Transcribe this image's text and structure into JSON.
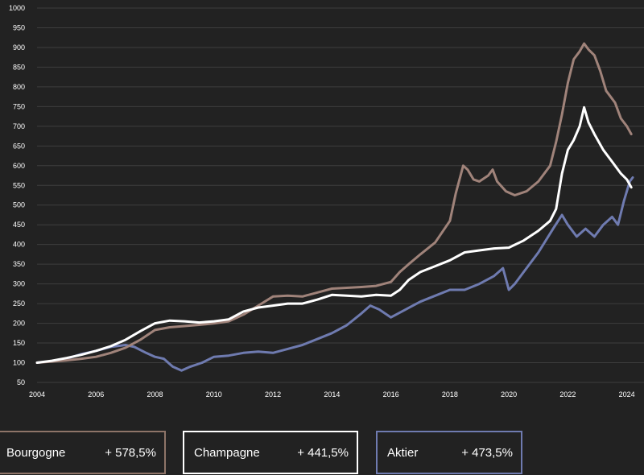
{
  "chart_data": {
    "type": "line",
    "title": "",
    "xlabel": "",
    "ylabel": "",
    "xlim": [
      2004,
      2024.2
    ],
    "ylim": [
      50,
      1000
    ],
    "xticks": [
      2004,
      2006,
      2008,
      2010,
      2012,
      2014,
      2016,
      2018,
      2020,
      2022,
      2024
    ],
    "yticks": [
      50,
      100,
      150,
      200,
      250,
      300,
      350,
      400,
      450,
      500,
      550,
      600,
      650,
      700,
      750,
      800,
      850,
      900,
      950,
      1000
    ],
    "grid": "horizontal",
    "legend_position": "bottom",
    "series": [
      {
        "name": "Bourgogne",
        "change": "+ 578,5%",
        "color": "#a0837a",
        "points": [
          [
            2004.0,
            100
          ],
          [
            2004.5,
            103
          ],
          [
            2005.0,
            106
          ],
          [
            2005.5,
            110
          ],
          [
            2006.0,
            115
          ],
          [
            2006.5,
            125
          ],
          [
            2007.0,
            138
          ],
          [
            2007.5,
            158
          ],
          [
            2008.0,
            183
          ],
          [
            2008.5,
            190
          ],
          [
            2009.0,
            193
          ],
          [
            2009.5,
            196
          ],
          [
            2010.0,
            200
          ],
          [
            2010.5,
            205
          ],
          [
            2011.0,
            222
          ],
          [
            2011.5,
            245
          ],
          [
            2012.0,
            268
          ],
          [
            2012.5,
            270
          ],
          [
            2013.0,
            268
          ],
          [
            2013.5,
            278
          ],
          [
            2014.0,
            288
          ],
          [
            2014.5,
            290
          ],
          [
            2015.0,
            292
          ],
          [
            2015.5,
            295
          ],
          [
            2016.0,
            305
          ],
          [
            2016.3,
            330
          ],
          [
            2016.6,
            350
          ],
          [
            2017.0,
            375
          ],
          [
            2017.5,
            405
          ],
          [
            2018.0,
            460
          ],
          [
            2018.2,
            530
          ],
          [
            2018.45,
            600
          ],
          [
            2018.6,
            590
          ],
          [
            2018.8,
            565
          ],
          [
            2019.0,
            560
          ],
          [
            2019.3,
            575
          ],
          [
            2019.45,
            590
          ],
          [
            2019.6,
            560
          ],
          [
            2019.9,
            535
          ],
          [
            2020.2,
            525
          ],
          [
            2020.6,
            535
          ],
          [
            2021.0,
            560
          ],
          [
            2021.4,
            600
          ],
          [
            2021.6,
            660
          ],
          [
            2021.8,
            730
          ],
          [
            2022.0,
            810
          ],
          [
            2022.2,
            870
          ],
          [
            2022.4,
            890
          ],
          [
            2022.55,
            910
          ],
          [
            2022.7,
            895
          ],
          [
            2022.9,
            880
          ],
          [
            2023.1,
            840
          ],
          [
            2023.3,
            790
          ],
          [
            2023.6,
            760
          ],
          [
            2023.8,
            720
          ],
          [
            2024.0,
            700
          ],
          [
            2024.15,
            680
          ]
        ]
      },
      {
        "name": "Champagne",
        "change": "+ 441,5%",
        "color": "#ffffff",
        "points": [
          [
            2004.0,
            100
          ],
          [
            2004.5,
            105
          ],
          [
            2005.0,
            112
          ],
          [
            2005.5,
            120
          ],
          [
            2006.0,
            130
          ],
          [
            2006.5,
            142
          ],
          [
            2007.0,
            158
          ],
          [
            2007.5,
            180
          ],
          [
            2008.0,
            200
          ],
          [
            2008.5,
            207
          ],
          [
            2009.0,
            205
          ],
          [
            2009.5,
            202
          ],
          [
            2010.0,
            205
          ],
          [
            2010.5,
            210
          ],
          [
            2011.0,
            230
          ],
          [
            2011.5,
            240
          ],
          [
            2012.0,
            245
          ],
          [
            2012.5,
            250
          ],
          [
            2013.0,
            250
          ],
          [
            2013.5,
            260
          ],
          [
            2014.0,
            272
          ],
          [
            2014.5,
            270
          ],
          [
            2015.0,
            268
          ],
          [
            2015.5,
            272
          ],
          [
            2016.0,
            270
          ],
          [
            2016.3,
            285
          ],
          [
            2016.6,
            310
          ],
          [
            2017.0,
            330
          ],
          [
            2017.5,
            345
          ],
          [
            2018.0,
            360
          ],
          [
            2018.5,
            380
          ],
          [
            2019.0,
            385
          ],
          [
            2019.5,
            390
          ],
          [
            2020.0,
            392
          ],
          [
            2020.5,
            410
          ],
          [
            2021.0,
            435
          ],
          [
            2021.4,
            460
          ],
          [
            2021.6,
            490
          ],
          [
            2021.8,
            580
          ],
          [
            2022.0,
            640
          ],
          [
            2022.2,
            665
          ],
          [
            2022.4,
            700
          ],
          [
            2022.55,
            748
          ],
          [
            2022.7,
            710
          ],
          [
            2022.9,
            680
          ],
          [
            2023.2,
            640
          ],
          [
            2023.5,
            610
          ],
          [
            2023.8,
            580
          ],
          [
            2024.0,
            565
          ],
          [
            2024.15,
            545
          ]
        ]
      },
      {
        "name": "Aktier",
        "change": "+ 473,5%",
        "color": "#6f7bb0",
        "points": [
          [
            2004.0,
            100
          ],
          [
            2004.5,
            104
          ],
          [
            2005.0,
            110
          ],
          [
            2005.5,
            122
          ],
          [
            2006.0,
            130
          ],
          [
            2006.5,
            140
          ],
          [
            2007.0,
            145
          ],
          [
            2007.3,
            140
          ],
          [
            2007.7,
            125
          ],
          [
            2008.0,
            115
          ],
          [
            2008.3,
            110
          ],
          [
            2008.6,
            90
          ],
          [
            2008.9,
            80
          ],
          [
            2009.2,
            90
          ],
          [
            2009.6,
            100
          ],
          [
            2010.0,
            115
          ],
          [
            2010.5,
            118
          ],
          [
            2011.0,
            125
          ],
          [
            2011.5,
            128
          ],
          [
            2012.0,
            125
          ],
          [
            2012.5,
            135
          ],
          [
            2013.0,
            145
          ],
          [
            2013.5,
            160
          ],
          [
            2014.0,
            175
          ],
          [
            2014.5,
            195
          ],
          [
            2015.0,
            225
          ],
          [
            2015.3,
            245
          ],
          [
            2015.6,
            235
          ],
          [
            2016.0,
            215
          ],
          [
            2016.5,
            235
          ],
          [
            2017.0,
            255
          ],
          [
            2017.5,
            270
          ],
          [
            2018.0,
            285
          ],
          [
            2018.5,
            285
          ],
          [
            2019.0,
            300
          ],
          [
            2019.5,
            320
          ],
          [
            2019.8,
            340
          ],
          [
            2020.0,
            285
          ],
          [
            2020.2,
            300
          ],
          [
            2020.5,
            330
          ],
          [
            2021.0,
            380
          ],
          [
            2021.5,
            440
          ],
          [
            2021.8,
            475
          ],
          [
            2022.0,
            450
          ],
          [
            2022.3,
            420
          ],
          [
            2022.6,
            440
          ],
          [
            2022.9,
            420
          ],
          [
            2023.2,
            450
          ],
          [
            2023.5,
            470
          ],
          [
            2023.7,
            450
          ],
          [
            2023.9,
            510
          ],
          [
            2024.1,
            560
          ],
          [
            2024.2,
            570
          ]
        ]
      }
    ]
  }
}
